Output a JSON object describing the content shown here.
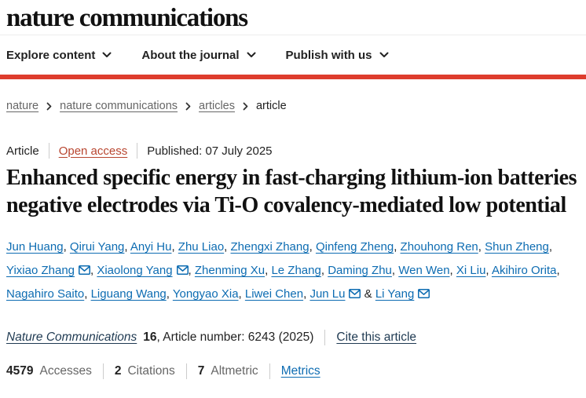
{
  "header": {
    "logo_text": "nature communications",
    "nav": [
      {
        "id": "explore-content",
        "label": "Explore content"
      },
      {
        "id": "about-the-journal",
        "label": "About the journal"
      },
      {
        "id": "publish-with-us",
        "label": "Publish with us"
      }
    ]
  },
  "breadcrumb": [
    {
      "label": "nature",
      "is_link": true
    },
    {
      "label": "nature communications",
      "is_link": true
    },
    {
      "label": "articles",
      "is_link": true
    },
    {
      "label": "article",
      "is_link": false
    }
  ],
  "article": {
    "type_label": "Article",
    "access_label": "Open access",
    "published_text": "Published: 07 July 2025",
    "title": "Enhanced specific energy in fast-charging lithium-ion batteries negative electrodes via Ti-O covalency-mediated low potential",
    "authors": [
      {
        "name": "Jun Huang",
        "email": false
      },
      {
        "name": "Qirui Yang",
        "email": false
      },
      {
        "name": "Anyi Hu",
        "email": false
      },
      {
        "name": "Zhu Liao",
        "email": false
      },
      {
        "name": "Zhengxi Zhang",
        "email": false
      },
      {
        "name": "Qinfeng Zheng",
        "email": false
      },
      {
        "name": "Zhouhong Ren",
        "email": false
      },
      {
        "name": "Shun Zheng",
        "email": false
      },
      {
        "name": "Yixiao Zhang",
        "email": true
      },
      {
        "name": "Xiaolong Yang",
        "email": true
      },
      {
        "name": "Zhenming Xu",
        "email": false
      },
      {
        "name": "Le Zhang",
        "email": false
      },
      {
        "name": "Daming Zhu",
        "email": false
      },
      {
        "name": "Wen Wen",
        "email": false
      },
      {
        "name": "Xi Liu",
        "email": false
      },
      {
        "name": "Akihiro Orita",
        "email": false
      },
      {
        "name": "Nagahiro Saito",
        "email": false
      },
      {
        "name": "Liguang Wang",
        "email": false
      },
      {
        "name": "Yongyao Xia",
        "email": false
      },
      {
        "name": "Liwei Chen",
        "email": false
      },
      {
        "name": "Jun Lu",
        "email": true
      },
      {
        "name": "Li Yang",
        "email": true
      }
    ],
    "journal": {
      "name": "Nature Communications",
      "volume": "16",
      "suffix": ", Article number: 6243 (2025)",
      "cite_label": "Cite this article"
    },
    "metrics": {
      "items": [
        {
          "value": "4579",
          "label": "Accesses"
        },
        {
          "value": "2",
          "label": "Citations"
        },
        {
          "value": "7",
          "label": "Altmetric"
        }
      ],
      "link_label": "Metrics"
    }
  },
  "colors": {
    "brand_red": "#de3c2d",
    "link_blue": "#0d6cb2",
    "link_rust": "#b8452f",
    "link_dark": "#1f3a52",
    "text_dark": "#222222",
    "text_gray": "#666666"
  }
}
